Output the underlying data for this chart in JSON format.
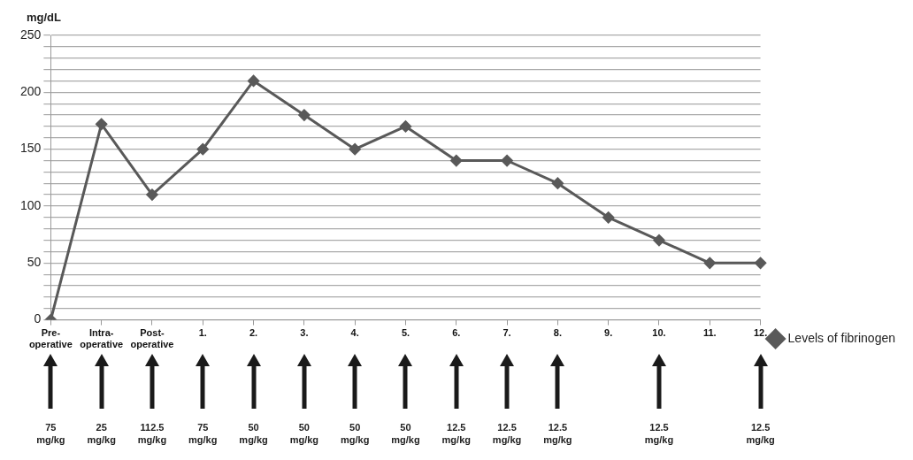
{
  "chart_data": {
    "type": "line",
    "ylabel": "mg/dL",
    "categories": [
      "Pre-operative",
      "Intra-operative",
      "Post-operative",
      "1.",
      "2.",
      "3.",
      "4.",
      "5.",
      "6.",
      "7.",
      "8.",
      "9.",
      "10.",
      "11.",
      "12."
    ],
    "series": [
      {
        "name": "Levels of fibrinogen",
        "color": "#595959",
        "values": [
          0,
          172,
          110,
          150,
          210,
          180,
          150,
          170,
          140,
          140,
          120,
          90,
          70,
          50,
          50
        ]
      }
    ],
    "ylim": [
      0,
      250
    ],
    "yticks": [
      0,
      {
        "value": 10,
        "label": null
      },
      {
        "value": 20,
        "label": null
      },
      {
        "value": 30,
        "label": null
      },
      {
        "value": 40,
        "label": null
      },
      50,
      {
        "value": 60,
        "label": null
      },
      {
        "value": 70,
        "label": null
      },
      {
        "value": 80,
        "label": null
      },
      {
        "value": 90,
        "label": null
      },
      100,
      {
        "value": 110,
        "label": null
      },
      {
        "value": 120,
        "label": null
      },
      {
        "value": 130,
        "label": null
      },
      {
        "value": 140,
        "label": null
      },
      150,
      {
        "value": 160,
        "label": null
      },
      {
        "value": 170,
        "label": null
      },
      {
        "value": 180,
        "label": null
      },
      {
        "value": 190,
        "label": null
      },
      200,
      {
        "value": 210,
        "label": null
      },
      {
        "value": 220,
        "label": null
      },
      {
        "value": 230,
        "label": null
      },
      {
        "value": 240,
        "label": null
      },
      250
    ],
    "grid": "y",
    "legend": "right",
    "marker": "diamond",
    "line_style": "solid",
    "annotations": [
      "75 mg/kg",
      "25 mg/kg",
      "112.5 mg/kg",
      "75 mg/kg",
      "50 mg/kg",
      "50 mg/kg",
      "50 mg/kg",
      "50 mg/kg",
      "12.5 mg/kg",
      "12.5 mg/kg",
      "12.5 mg/kg",
      "12.5 mg/kg",
      "12.5 mg/kg"
    ]
  }
}
